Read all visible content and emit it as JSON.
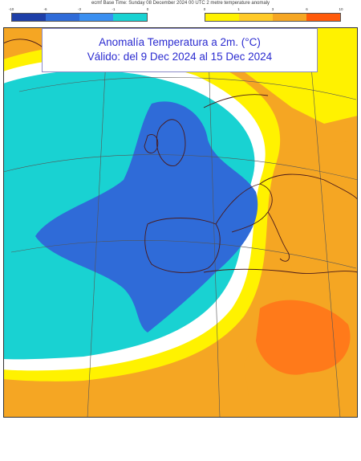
{
  "header": {
    "text": "ecmf  Base Time: Sunday 08 December 2024 00 UTC 2 metre temperature anomaly"
  },
  "legend": {
    "cold": {
      "ticks": [
        "-10",
        "-6",
        "-3",
        "-1",
        "0"
      ],
      "colors": [
        "#1e3fa8",
        "#2f6bd8",
        "#3a8ff0",
        "#19d2d2"
      ]
    },
    "warm": {
      "ticks": [
        "0",
        "1",
        "3",
        "6",
        "10"
      ],
      "colors": [
        "#fff200",
        "#ffca28",
        "#f5a623",
        "#ff5a0a"
      ]
    }
  },
  "map_panel": {
    "title_line1": "Anomalía Temperatura a 2m. (°C)",
    "title_line2": "Válido: del 9 Dec 2024 al 15 Dec 2024",
    "anomaly_colors": {
      "strong_cold": "#2f6bd8",
      "cold": "#19d2d2",
      "near_zero": "#ffffff",
      "warm_slight": "#fff200",
      "warm": "#f5a623",
      "warm_strong": "#ff7a1a",
      "coastline": "#4a1a1a",
      "graticule": "#555555"
    }
  }
}
